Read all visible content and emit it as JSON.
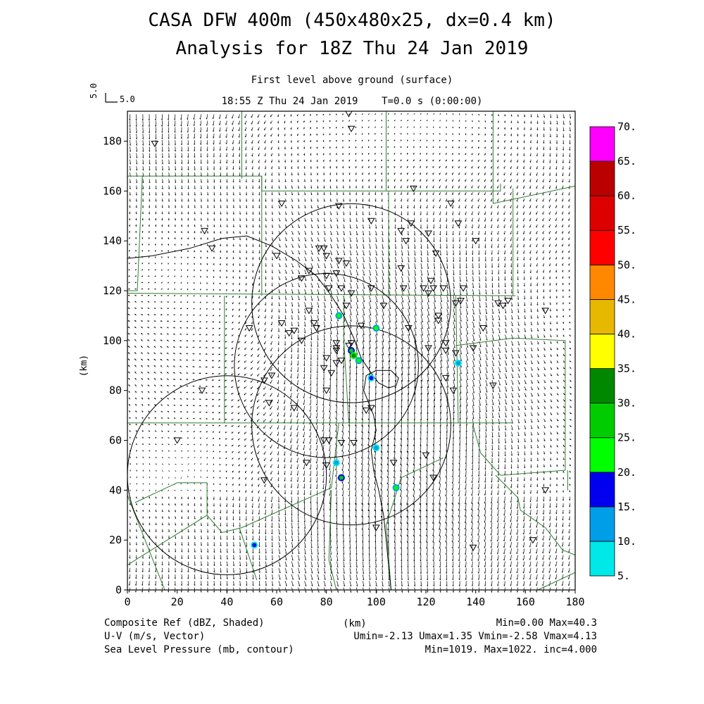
{
  "title_line1": "CASA DFW 400m (450x480x25, dx=0.4 km)",
  "title_line2": "Analysis for 18Z Thu 24 Jan 2019",
  "subtitle_line1": "First level above ground (surface)",
  "subtitle_line2": "18:55 Z Thu 24 Jan 2019    T=0.0 s (0:00:00)",
  "ref_vector_rotated": "5.0",
  "ref_vector_label": "5.0",
  "footer": {
    "left": [
      "Composite Ref (dBZ, Shaded)",
      "U-V (m/s, Vector)",
      "Sea Level Pressure (mb, contour)"
    ],
    "center": "(km)",
    "right": [
      "Min=0.00 Max=40.3",
      "Umin=-2.13 Umax=1.35 Vmin=-2.58 Vmax=4.13",
      "Min=1019. Max=1022. inc=4.000"
    ]
  },
  "colors": {
    "county_lines": "#2e7d32",
    "contours": "#000000",
    "vectors": "#000000"
  },
  "chart_data": {
    "type": "heatmap",
    "xlabel": "(km)",
    "ylabel": "(km)",
    "xlim": [
      0,
      180
    ],
    "ylim": [
      0,
      192
    ],
    "x_ticks": [
      0,
      20,
      40,
      60,
      80,
      100,
      120,
      140,
      160,
      180
    ],
    "y_ticks": [
      0,
      20,
      40,
      60,
      80,
      100,
      120,
      140,
      160,
      180
    ],
    "colorbar": {
      "labels": [
        "5.",
        "10.",
        "15.",
        "20.",
        "25.",
        "30.",
        "35.",
        "40.",
        "45.",
        "50.",
        "55.",
        "60.",
        "65.",
        "70."
      ],
      "colors": [
        "#00e8e8",
        "#009ee8",
        "#0000ee",
        "#00ff00",
        "#00cc00",
        "#008800",
        "#ffff00",
        "#e6b800",
        "#ff8800",
        "#ff0000",
        "#dd0000",
        "#bb0000",
        "#ff00ff"
      ]
    },
    "radar_range_rings": [
      {
        "center": [
          90,
          115
        ],
        "radius_km": 40
      },
      {
        "center": [
          80,
          90
        ],
        "radius_km": 37
      },
      {
        "center": [
          90,
          66
        ],
        "radius_km": 40
      },
      {
        "center": [
          40,
          46
        ],
        "radius_km": 40
      }
    ],
    "reflectivity_echoes": [
      {
        "x": 85,
        "y": 110,
        "dbz": 20
      },
      {
        "x": 100,
        "y": 105,
        "dbz": 22
      },
      {
        "x": 90,
        "y": 96,
        "dbz": 25
      },
      {
        "x": 91,
        "y": 94,
        "dbz": 30
      },
      {
        "x": 93,
        "y": 92,
        "dbz": 22
      },
      {
        "x": 98,
        "y": 85,
        "dbz": 15
      },
      {
        "x": 133,
        "y": 91,
        "dbz": 10
      },
      {
        "x": 100,
        "y": 57,
        "dbz": 10
      },
      {
        "x": 84,
        "y": 51,
        "dbz": 10
      },
      {
        "x": 86,
        "y": 45,
        "dbz": 25
      },
      {
        "x": 108,
        "y": 41,
        "dbz": 20
      },
      {
        "x": 51,
        "y": 18,
        "dbz": 18
      }
    ],
    "station_markers": [
      [
        11,
        179
      ],
      [
        89,
        191
      ],
      [
        90,
        185
      ],
      [
        31,
        144
      ],
      [
        34,
        137
      ],
      [
        62,
        155
      ],
      [
        85,
        154
      ],
      [
        115,
        161
      ],
      [
        130,
        155
      ],
      [
        98,
        148
      ],
      [
        110,
        144
      ],
      [
        114,
        147
      ],
      [
        112,
        140
      ],
      [
        121,
        143
      ],
      [
        124,
        135
      ],
      [
        140,
        140
      ],
      [
        133,
        147
      ],
      [
        77,
        137
      ],
      [
        79,
        137
      ],
      [
        80,
        134
      ],
      [
        85,
        132
      ],
      [
        60,
        134
      ],
      [
        73,
        128
      ],
      [
        84,
        127
      ],
      [
        88,
        131
      ],
      [
        70,
        125
      ],
      [
        80,
        126
      ],
      [
        81,
        121
      ],
      [
        86,
        121
      ],
      [
        98,
        121
      ],
      [
        110,
        129
      ],
      [
        111,
        121
      ],
      [
        119,
        121
      ],
      [
        121,
        119
      ],
      [
        123,
        121
      ],
      [
        122,
        124
      ],
      [
        127,
        121
      ],
      [
        135,
        121
      ],
      [
        134,
        116
      ],
      [
        132,
        115
      ],
      [
        125,
        110
      ],
      [
        125,
        108
      ],
      [
        149,
        115
      ],
      [
        153,
        116
      ],
      [
        151,
        114
      ],
      [
        168,
        112
      ],
      [
        143,
        105
      ],
      [
        49,
        105
      ],
      [
        62,
        107
      ],
      [
        67,
        104
      ],
      [
        75,
        107
      ],
      [
        76,
        105
      ],
      [
        90,
        119
      ],
      [
        88,
        114
      ],
      [
        73,
        112
      ],
      [
        70,
        100
      ],
      [
        65,
        103
      ],
      [
        84,
        99
      ],
      [
        84,
        97
      ],
      [
        84,
        96
      ],
      [
        89,
        98
      ],
      [
        90,
        99
      ],
      [
        94,
        106
      ],
      [
        103,
        114
      ],
      [
        113,
        105
      ],
      [
        121,
        97
      ],
      [
        128,
        99
      ],
      [
        128,
        96
      ],
      [
        132,
        95
      ],
      [
        139,
        97
      ],
      [
        128,
        85
      ],
      [
        131,
        80
      ],
      [
        147,
        82
      ],
      [
        80,
        93
      ],
      [
        79,
        89
      ],
      [
        82,
        87
      ],
      [
        84,
        91
      ],
      [
        86,
        92
      ],
      [
        58,
        86
      ],
      [
        55,
        84
      ],
      [
        30,
        80
      ],
      [
        57,
        75
      ],
      [
        67,
        73
      ],
      [
        80,
        80
      ],
      [
        96,
        72
      ],
      [
        98,
        73
      ],
      [
        72,
        51
      ],
      [
        80,
        50
      ],
      [
        79,
        60
      ],
      [
        81,
        60
      ],
      [
        86,
        59
      ],
      [
        91,
        59
      ],
      [
        107,
        51
      ],
      [
        120,
        54
      ],
      [
        123,
        45
      ],
      [
        20,
        60
      ],
      [
        55,
        44
      ],
      [
        100,
        25
      ],
      [
        139,
        17
      ],
      [
        163,
        20
      ],
      [
        168,
        40
      ]
    ],
    "wind_vector_ranges": {
      "umin": -2.13,
      "umax": 1.35,
      "vmin": -2.58,
      "vmax": 4.13
    },
    "sea_level_pressure": {
      "min": 1019,
      "max": 1022,
      "inc": 4.0
    }
  }
}
